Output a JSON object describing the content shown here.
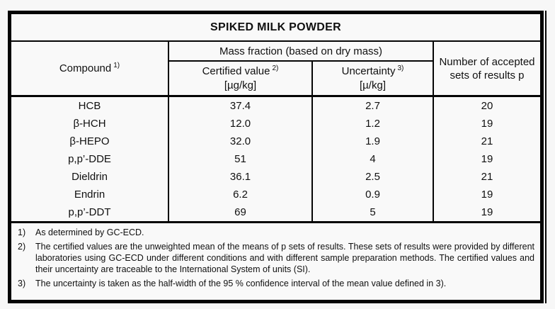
{
  "colors": {
    "border": "#050505",
    "background": "#f7f7f7",
    "text": "#101010"
  },
  "table": {
    "title": "SPIKED MILK POWDER",
    "header": {
      "compound": {
        "label": "Compound",
        "sup": "1)"
      },
      "mass_fraction_group": "Mass fraction (based on dry mass)",
      "certified": {
        "label": "Certified value",
        "sup": "2)",
        "unit": "[µg/kg]"
      },
      "uncertainty": {
        "label": "Uncertainty",
        "sup": "3)",
        "unit": "[µ/kg]"
      },
      "accepted": "Number of accepted sets of results p"
    },
    "rows": [
      {
        "compound": "HCB",
        "certified": "37.4",
        "uncertainty": "2.7",
        "sets": "20"
      },
      {
        "compound": "β-HCH",
        "certified": "12.0",
        "uncertainty": "1.2",
        "sets": "19"
      },
      {
        "compound": "β-HEPO",
        "certified": "32.0",
        "uncertainty": "1.9",
        "sets": "21"
      },
      {
        "compound": "p,p’-DDE",
        "certified": "51",
        "uncertainty": "4",
        "sets": "19"
      },
      {
        "compound": "Dieldrin",
        "certified": "36.1",
        "uncertainty": "2.5",
        "sets": "21"
      },
      {
        "compound": "Endrin",
        "certified": "6.2",
        "uncertainty": "0.9",
        "sets": "19"
      },
      {
        "compound": "p,p’-DDT",
        "certified": "69",
        "uncertainty": "5",
        "sets": "19"
      }
    ],
    "footnotes": [
      {
        "num": "1)",
        "text": "As determined by GC-ECD."
      },
      {
        "num": "2)",
        "text": "The certified values are the unweighted mean of the means of p sets of results. These sets of results were provided by different laboratories using GC-ECD under different conditions and with different sample preparation methods. The certified values and their uncertainty are traceable to the International System of units (SI)."
      },
      {
        "num": "3)",
        "text": "The uncertainty is taken as the half-width of the 95 % confidence interval of the mean value defined in 3)."
      }
    ]
  }
}
